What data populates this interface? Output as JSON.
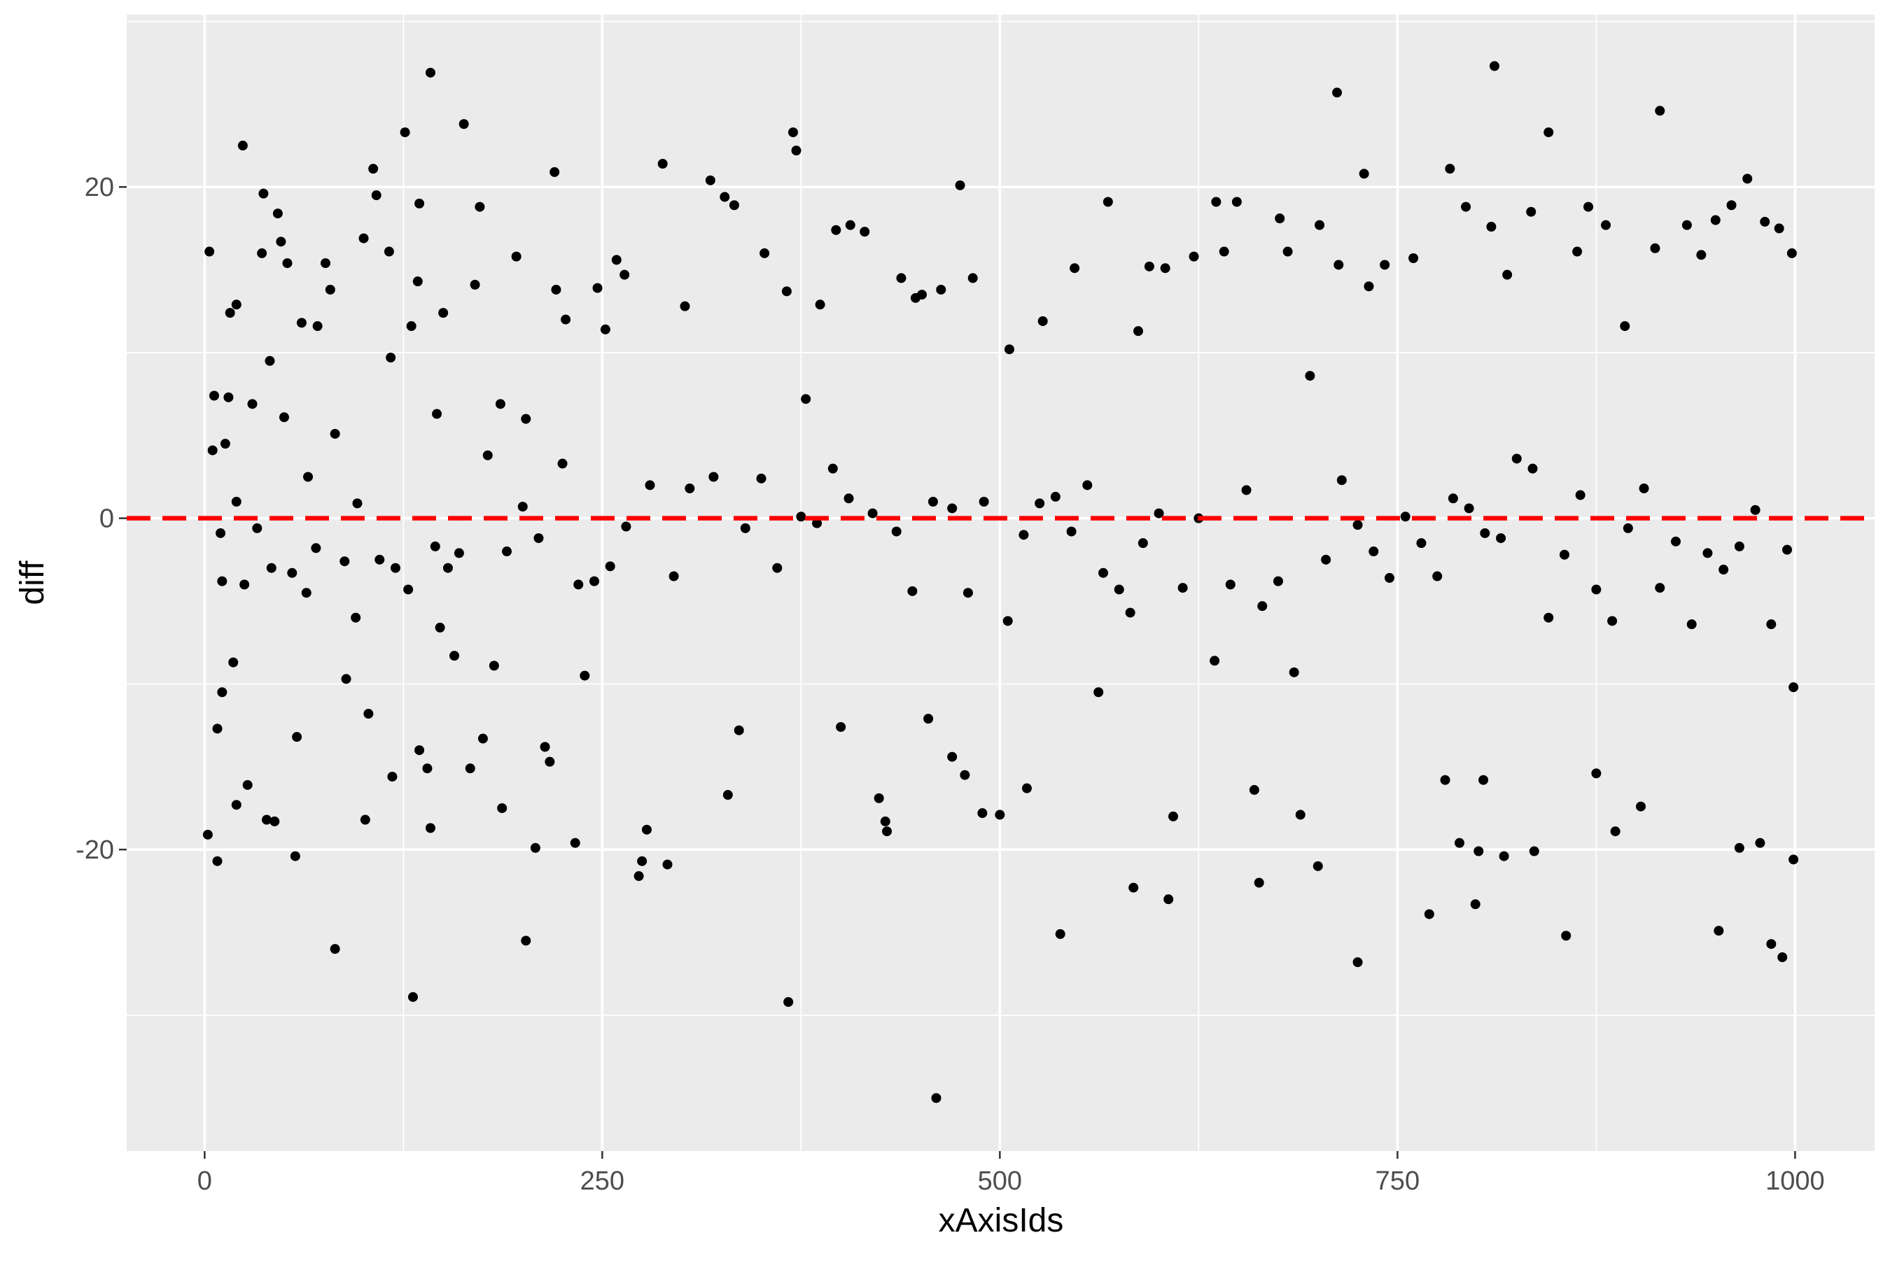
{
  "chart_data": {
    "type": "scatter",
    "title": "",
    "xlabel": "xAxisIds",
    "ylabel": "diff",
    "xlim": [
      -49,
      1050
    ],
    "ylim": [
      -38.2,
      30.4
    ],
    "x_ticks": [
      0,
      250,
      500,
      750,
      1000
    ],
    "x_tick_labels": [
      "0",
      "250",
      "500",
      "750",
      "1000"
    ],
    "x_minor_gridlines": [
      125,
      375,
      625,
      875
    ],
    "y_ticks": [
      -20,
      0,
      20
    ],
    "y_tick_labels": [
      "-20",
      "0",
      "20"
    ],
    "y_minor_gridlines": [
      -30,
      -10,
      10,
      30
    ],
    "grid": true,
    "panel_background": "#ebebeb",
    "point_color": "#000000",
    "reference_line": {
      "y": 0,
      "style": "dashed",
      "color": "#ff0000"
    },
    "points": [
      [
        2,
        -19.1
      ],
      [
        3,
        16.1
      ],
      [
        5,
        4.1
      ],
      [
        6,
        7.4
      ],
      [
        8,
        -20.7
      ],
      [
        8,
        -12.7
      ],
      [
        11,
        -10.5
      ],
      [
        11,
        -3.8
      ],
      [
        13,
        4.5
      ],
      [
        15,
        7.3
      ],
      [
        16,
        12.4
      ],
      [
        20,
        12.9
      ],
      [
        20,
        1.0
      ],
      [
        20,
        -17.3
      ],
      [
        24,
        22.5
      ],
      [
        27,
        -16.1
      ],
      [
        30,
        6.9
      ],
      [
        33,
        -0.6
      ],
      [
        36,
        16.0
      ],
      [
        37,
        19.6
      ],
      [
        39,
        -18.2
      ],
      [
        41,
        9.5
      ],
      [
        44,
        -18.3
      ],
      [
        46,
        18.4
      ],
      [
        48,
        16.7
      ],
      [
        50,
        6.1
      ],
      [
        52,
        15.4
      ],
      [
        57,
        -20.4
      ],
      [
        58,
        -13.2
      ],
      [
        61,
        11.8
      ],
      [
        65,
        2.5
      ],
      [
        71,
        11.6
      ],
      [
        76,
        15.4
      ],
      [
        79,
        13.8
      ],
      [
        82,
        -26.0
      ],
      [
        82,
        5.1
      ],
      [
        89,
        -9.7
      ],
      [
        96,
        0.9
      ],
      [
        100,
        16.9
      ],
      [
        101,
        -18.2
      ],
      [
        103,
        -11.8
      ],
      [
        106,
        21.1
      ],
      [
        108,
        19.5
      ],
      [
        116,
        16.1
      ],
      [
        117,
        9.7
      ],
      [
        118,
        -15.6
      ],
      [
        126,
        23.3
      ],
      [
        130,
        11.6
      ],
      [
        134,
        14.3
      ],
      [
        131,
        -28.9
      ],
      [
        135,
        19.0
      ],
      [
        135,
        -14.0
      ],
      [
        140,
        -15.1
      ],
      [
        142,
        -18.7
      ],
      [
        142,
        26.9
      ],
      [
        146,
        6.3
      ],
      [
        148,
        -6.6
      ],
      [
        150,
        12.4
      ],
      [
        157,
        -8.3
      ],
      [
        163,
        23.8
      ],
      [
        167,
        -15.1
      ],
      [
        170,
        14.1
      ],
      [
        173,
        18.8
      ],
      [
        175,
        -13.3
      ],
      [
        182,
        -8.9
      ],
      [
        186,
        6.9
      ],
      [
        187,
        -17.5
      ],
      [
        196,
        15.8
      ],
      [
        202,
        6.0
      ],
      [
        202,
        -25.5
      ],
      [
        208,
        -19.9
      ],
      [
        214,
        -13.8
      ],
      [
        217,
        -14.7
      ],
      [
        220,
        20.9
      ],
      [
        221,
        13.8
      ],
      [
        227,
        12.0
      ],
      [
        233,
        -19.6
      ],
      [
        239,
        -9.5
      ],
      [
        247,
        13.9
      ],
      [
        252,
        11.4
      ],
      [
        259,
        15.6
      ],
      [
        264,
        14.7
      ],
      [
        273,
        -21.6
      ],
      [
        275,
        -20.7
      ],
      [
        278,
        -18.8
      ],
      [
        288,
        21.4
      ],
      [
        291,
        -20.9
      ],
      [
        302,
        12.8
      ],
      [
        318,
        20.4
      ],
      [
        327,
        19.4
      ],
      [
        329,
        -16.7
      ],
      [
        333,
        18.9
      ],
      [
        336,
        -12.8
      ],
      [
        352,
        16.0
      ],
      [
        366,
        13.7
      ],
      [
        367,
        -29.2
      ],
      [
        370,
        23.3
      ],
      [
        372,
        22.2
      ],
      [
        378,
        7.2
      ],
      [
        387,
        12.9
      ],
      [
        397,
        17.4
      ],
      [
        400,
        -12.6
      ],
      [
        406,
        17.7
      ],
      [
        415,
        17.3
      ],
      [
        424,
        -16.9
      ],
      [
        428,
        -18.3
      ],
      [
        429,
        -18.9
      ],
      [
        438,
        14.5
      ],
      [
        447,
        13.3
      ],
      [
        451,
        13.5
      ],
      [
        455,
        -12.1
      ],
      [
        460,
        -35.0
      ],
      [
        463,
        13.8
      ],
      [
        470,
        -14.4
      ],
      [
        475,
        20.1
      ],
      [
        478,
        -15.5
      ],
      [
        483,
        14.5
      ],
      [
        489,
        -17.8
      ],
      [
        500,
        -17.9
      ],
      [
        506,
        10.2
      ],
      [
        517,
        -16.3
      ],
      [
        527,
        11.9
      ],
      [
        538,
        -25.1
      ],
      [
        547,
        15.1
      ],
      [
        562,
        -10.5
      ],
      [
        568,
        19.1
      ],
      [
        582,
        -5.7
      ],
      [
        584,
        -22.3
      ],
      [
        587,
        11.3
      ],
      [
        594,
        15.2
      ],
      [
        604,
        15.1
      ],
      [
        606,
        -23.0
      ],
      [
        609,
        -18.0
      ],
      [
        622,
        15.8
      ],
      [
        636,
        19.1
      ],
      [
        641,
        16.1
      ],
      [
        649,
        19.1
      ],
      [
        660,
        -16.4
      ],
      [
        663,
        -22.0
      ],
      [
        676,
        18.1
      ],
      [
        681,
        16.1
      ],
      [
        689,
        -17.9
      ],
      [
        700,
        -21.0
      ],
      [
        701,
        17.7
      ],
      [
        712,
        25.7
      ],
      [
        713,
        15.3
      ],
      [
        725,
        -26.8
      ],
      [
        729,
        20.8
      ],
      [
        732,
        14.0
      ],
      [
        742,
        15.3
      ],
      [
        760,
        15.7
      ],
      [
        770,
        -23.9
      ],
      [
        780,
        -15.8
      ],
      [
        783,
        21.1
      ],
      [
        789,
        -19.6
      ],
      [
        793,
        18.8
      ],
      [
        799,
        -23.3
      ],
      [
        801,
        -20.1
      ],
      [
        804,
        -15.8
      ],
      [
        809,
        17.6
      ],
      [
        811,
        27.3
      ],
      [
        817,
        -20.4
      ],
      [
        819,
        14.7
      ],
      [
        834,
        18.5
      ],
      [
        836,
        -20.1
      ],
      [
        845,
        23.3
      ],
      [
        856,
        -25.2
      ],
      [
        863,
        16.1
      ],
      [
        870,
        18.8
      ],
      [
        875,
        -15.4
      ],
      [
        881,
        17.7
      ],
      [
        887,
        -18.9
      ],
      [
        893,
        11.6
      ],
      [
        903,
        -17.4
      ],
      [
        912,
        16.3
      ],
      [
        915,
        24.6
      ],
      [
        932,
        17.7
      ],
      [
        941,
        15.9
      ],
      [
        950,
        18.0
      ],
      [
        952,
        -24.9
      ],
      [
        960,
        18.9
      ],
      [
        965,
        -19.9
      ],
      [
        970,
        20.5
      ],
      [
        978,
        -19.6
      ],
      [
        981,
        17.9
      ],
      [
        985,
        -25.7
      ],
      [
        990,
        17.5
      ],
      [
        992,
        -26.5
      ],
      [
        998,
        16.0
      ],
      [
        999,
        -20.6
      ],
      [
        999,
        -10.2
      ],
      [
        10,
        -0.9
      ],
      [
        18,
        -8.7
      ],
      [
        25,
        -4.0
      ],
      [
        42,
        -3.0
      ],
      [
        55,
        -3.3
      ],
      [
        64,
        -4.5
      ],
      [
        70,
        -1.8
      ],
      [
        88,
        -2.6
      ],
      [
        95,
        -6.0
      ],
      [
        110,
        -2.5
      ],
      [
        120,
        -3.0
      ],
      [
        128,
        -4.3
      ],
      [
        145,
        -1.7
      ],
      [
        153,
        -3.0
      ],
      [
        160,
        -2.1
      ],
      [
        178,
        3.8
      ],
      [
        190,
        -2.0
      ],
      [
        200,
        0.7
      ],
      [
        210,
        -1.2
      ],
      [
        225,
        3.3
      ],
      [
        235,
        -4.0
      ],
      [
        245,
        -3.8
      ],
      [
        255,
        -2.9
      ],
      [
        265,
        -0.5
      ],
      [
        280,
        2.0
      ],
      [
        295,
        -3.5
      ],
      [
        305,
        1.8
      ],
      [
        320,
        2.5
      ],
      [
        340,
        -0.6
      ],
      [
        350,
        2.4
      ],
      [
        360,
        -3.0
      ],
      [
        375,
        0.1
      ],
      [
        385,
        -0.3
      ],
      [
        395,
        3.0
      ],
      [
        405,
        1.2
      ],
      [
        420,
        0.3
      ],
      [
        435,
        -0.8
      ],
      [
        445,
        -4.4
      ],
      [
        458,
        1.0
      ],
      [
        470,
        0.6
      ],
      [
        480,
        -4.5
      ],
      [
        490,
        1.0
      ],
      [
        505,
        -6.2
      ],
      [
        515,
        -1.0
      ],
      [
        525,
        0.9
      ],
      [
        535,
        1.3
      ],
      [
        545,
        -0.8
      ],
      [
        555,
        2.0
      ],
      [
        565,
        -3.3
      ],
      [
        575,
        -4.3
      ],
      [
        590,
        -1.5
      ],
      [
        600,
        0.3
      ],
      [
        615,
        -4.2
      ],
      [
        625,
        0.0
      ],
      [
        635,
        -8.6
      ],
      [
        645,
        -4.0
      ],
      [
        655,
        1.7
      ],
      [
        665,
        -5.3
      ],
      [
        675,
        -3.8
      ],
      [
        685,
        -9.3
      ],
      [
        695,
        8.6
      ],
      [
        705,
        -2.5
      ],
      [
        715,
        2.3
      ],
      [
        725,
        -0.4
      ],
      [
        735,
        -2.0
      ],
      [
        745,
        -3.6
      ],
      [
        755,
        0.1
      ],
      [
        765,
        -1.5
      ],
      [
        775,
        -3.5
      ],
      [
        785,
        1.2
      ],
      [
        795,
        0.6
      ],
      [
        805,
        -0.9
      ],
      [
        815,
        -1.2
      ],
      [
        825,
        3.6
      ],
      [
        835,
        3.0
      ],
      [
        845,
        -6.0
      ],
      [
        855,
        -2.2
      ],
      [
        865,
        1.4
      ],
      [
        875,
        -4.3
      ],
      [
        885,
        -6.2
      ],
      [
        895,
        -0.6
      ],
      [
        905,
        1.8
      ],
      [
        915,
        -4.2
      ],
      [
        925,
        -1.4
      ],
      [
        935,
        -6.4
      ],
      [
        945,
        -2.1
      ],
      [
        955,
        -3.1
      ],
      [
        965,
        -1.7
      ],
      [
        975,
        0.5
      ],
      [
        985,
        -6.4
      ],
      [
        995,
        -1.9
      ]
    ]
  }
}
